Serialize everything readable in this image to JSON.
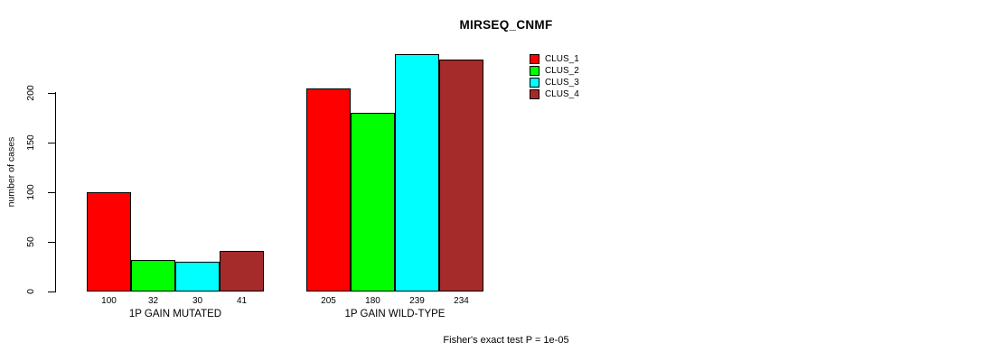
{
  "chart_data": {
    "type": "bar",
    "title": "MIRSEQ_CNMF",
    "ylabel": "number of cases",
    "xlabel": "",
    "yticks": [
      0,
      50,
      100,
      150,
      200
    ],
    "ylim": [
      0,
      239
    ],
    "grid": false,
    "legend_position": "right",
    "categories": [
      "1P GAIN MUTATED",
      "1P GAIN WILD-TYPE"
    ],
    "series": [
      {
        "name": "CLUS_1",
        "color": "#FF0000",
        "values": [
          100,
          205
        ]
      },
      {
        "name": "CLUS_2",
        "color": "#00FF00",
        "values": [
          32,
          180
        ]
      },
      {
        "name": "CLUS_3",
        "color": "#00FFFF",
        "values": [
          30,
          239
        ]
      },
      {
        "name": "CLUS_4",
        "color": "#A52A2A",
        "values": [
          41,
          234
        ]
      }
    ],
    "bar_value_labels": {
      "1P GAIN MUTATED": [
        100,
        32,
        30,
        41
      ],
      "1P GAIN WILD-TYPE": [
        205,
        180,
        239,
        234
      ]
    },
    "annotation": "Fisher's exact test P = 1e-05"
  }
}
